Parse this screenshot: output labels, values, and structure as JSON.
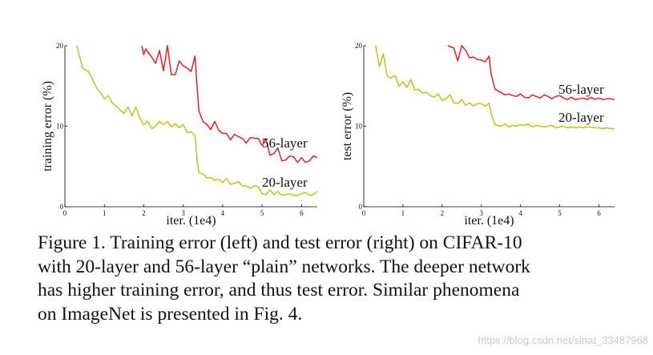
{
  "chart_data": [
    {
      "type": "line",
      "xlabel": "iter. (1e4)",
      "ylabel": "training error (%)",
      "xlim": [
        0,
        6.4
      ],
      "ylim": [
        0,
        20
      ],
      "xticks": [
        0,
        1,
        2,
        3,
        4,
        5,
        6
      ],
      "yticks": [
        0,
        10,
        20
      ],
      "series": [
        {
          "name": "56-layer",
          "color": "#ee1c25",
          "x": [
            1.95,
            2.0,
            2.05,
            2.1,
            2.2,
            2.3,
            2.4,
            2.5,
            2.6,
            2.7,
            2.8,
            2.9,
            3.0,
            3.1,
            3.2,
            3.3,
            3.35,
            3.4,
            3.5,
            3.6,
            3.7,
            3.8,
            3.9,
            4.0,
            4.1,
            4.2,
            4.3,
            4.4,
            4.5,
            4.6,
            4.7,
            4.8,
            4.9,
            5.0,
            5.1,
            5.2,
            5.3,
            5.4,
            5.5,
            5.6,
            5.7,
            5.8,
            5.9,
            6.0,
            6.1,
            6.2,
            6.3,
            6.4
          ],
          "y": [
            20.0,
            18.9,
            19.6,
            19.2,
            18.6,
            17.8,
            19.4,
            16.9,
            20.0,
            16.4,
            16.4,
            18.1,
            17.5,
            17.2,
            16.8,
            18.7,
            15.0,
            11.9,
            10.6,
            10.2,
            9.6,
            10.6,
            9.5,
            9.1,
            9.1,
            8.3,
            9.0,
            8.7,
            8.5,
            7.9,
            8.6,
            8.5,
            8.5,
            7.6,
            8.4,
            6.4,
            6.6,
            7.3,
            5.7,
            5.8,
            6.3,
            6.2,
            5.5,
            6.1,
            5.5,
            5.7,
            6.3,
            6.1
          ]
        },
        {
          "name": "20-layer",
          "color": "#bfc21a",
          "x": [
            0.3,
            0.45,
            0.6,
            0.7,
            0.8,
            0.9,
            1.0,
            1.1,
            1.2,
            1.3,
            1.4,
            1.5,
            1.6,
            1.7,
            1.8,
            1.9,
            2.0,
            2.1,
            2.2,
            2.3,
            2.4,
            2.5,
            2.6,
            2.7,
            2.8,
            2.9,
            3.0,
            3.1,
            3.2,
            3.3,
            3.35,
            3.4,
            3.5,
            3.6,
            3.7,
            3.8,
            3.9,
            4.0,
            4.1,
            4.2,
            4.3,
            4.4,
            4.5,
            4.6,
            4.7,
            4.8,
            4.9,
            5.0,
            5.1,
            5.2,
            5.3,
            5.4,
            5.5,
            5.6,
            5.7,
            5.8,
            5.9,
            6.0,
            6.1,
            6.2,
            6.3,
            6.4
          ],
          "y": [
            20.0,
            17.2,
            16.8,
            15.8,
            14.8,
            14.2,
            13.4,
            13.8,
            12.9,
            12.5,
            12.0,
            11.6,
            12.4,
            11.3,
            12.4,
            11.0,
            10.2,
            10.6,
            9.7,
            10.0,
            10.6,
            10.2,
            10.6,
            9.9,
            10.3,
            9.8,
            10.2,
            9.2,
            9.3,
            8.9,
            6.0,
            4.2,
            4.1,
            3.6,
            3.6,
            3.3,
            3.4,
            3.0,
            3.5,
            2.8,
            2.9,
            3.1,
            2.6,
            2.6,
            2.3,
            2.6,
            2.5,
            1.6,
            1.5,
            2.1,
            1.5,
            1.9,
            1.4,
            1.5,
            1.6,
            1.4,
            1.4,
            1.6,
            1.8,
            1.4,
            1.5,
            1.9
          ]
        }
      ]
    },
    {
      "type": "line",
      "xlabel": "iter. (1e4)",
      "ylabel": "test error (%)",
      "xlim": [
        0,
        6.4
      ],
      "ylim": [
        0,
        20
      ],
      "xticks": [
        0,
        1,
        2,
        3,
        4,
        5,
        6
      ],
      "yticks": [
        0,
        10,
        20
      ],
      "series": [
        {
          "name": "56-layer",
          "color": "#ee1c25",
          "x": [
            2.15,
            2.3,
            2.4,
            2.5,
            2.6,
            2.7,
            2.8,
            2.9,
            3.0,
            3.1,
            3.2,
            3.25,
            3.35,
            3.5,
            3.6,
            3.7,
            3.8,
            3.9,
            4.0,
            4.1,
            4.2,
            4.3,
            4.4,
            4.5,
            4.6,
            4.7,
            4.8,
            4.9,
            5.0,
            5.1,
            5.2,
            5.3,
            5.4,
            5.5,
            5.6,
            5.7,
            5.8,
            5.9,
            6.0,
            6.1,
            6.2,
            6.3,
            6.4
          ],
          "y": [
            20.0,
            19.7,
            18.1,
            20.0,
            19.4,
            18.5,
            18.6,
            18.3,
            18.2,
            18.0,
            18.7,
            16.5,
            14.6,
            14.2,
            13.9,
            14.0,
            13.8,
            13.7,
            14.0,
            13.6,
            13.5,
            13.9,
            13.7,
            13.5,
            13.9,
            13.7,
            13.4,
            13.7,
            13.8,
            13.5,
            13.3,
            13.6,
            13.3,
            13.4,
            13.5,
            13.3,
            13.6,
            13.3,
            13.5,
            13.3,
            13.4,
            13.4,
            13.3
          ]
        },
        {
          "name": "20-layer",
          "color": "#bfc21a",
          "x": [
            0.3,
            0.4,
            0.5,
            0.6,
            0.7,
            0.8,
            0.9,
            1.0,
            1.1,
            1.2,
            1.3,
            1.4,
            1.5,
            1.6,
            1.7,
            1.8,
            1.9,
            2.0,
            2.1,
            2.2,
            2.3,
            2.4,
            2.5,
            2.6,
            2.7,
            2.8,
            2.9,
            3.0,
            3.1,
            3.2,
            3.25,
            3.35,
            3.5,
            3.6,
            3.7,
            3.8,
            3.9,
            4.0,
            4.1,
            4.2,
            4.3,
            4.4,
            4.5,
            4.6,
            4.7,
            4.8,
            4.9,
            5.0,
            5.1,
            5.2,
            5.3,
            5.4,
            5.5,
            5.6,
            5.7,
            5.8,
            5.9,
            6.0,
            6.1,
            6.2,
            6.3,
            6.4
          ],
          "y": [
            20.0,
            17.4,
            19.0,
            16.2,
            16.0,
            16.3,
            15.0,
            15.5,
            14.8,
            15.8,
            14.5,
            14.6,
            14.1,
            14.2,
            13.8,
            13.6,
            14.0,
            13.2,
            13.4,
            13.9,
            12.9,
            12.8,
            13.3,
            12.6,
            12.9,
            12.5,
            12.8,
            12.8,
            12.5,
            12.9,
            11.6,
            10.2,
            10.0,
            10.3,
            9.9,
            10.1,
            10.0,
            10.2,
            10.1,
            10.3,
            9.9,
            10.1,
            10.0,
            9.9,
            10.0,
            10.1,
            9.8,
            9.9,
            10.0,
            9.8,
            9.9,
            9.8,
            9.9,
            9.8,
            9.9,
            9.9,
            9.8,
            9.8,
            9.7,
            9.8,
            9.7,
            9.7
          ]
        }
      ]
    }
  ],
  "caption": {
    "lines": [
      "Figure 1. Training error (left) and test error (right) on CIFAR-10",
      "with 20-layer and 56-layer “plain” networks. The deeper network",
      "has higher training error, and thus test error.  Similar phenomena",
      "on ImageNet is presented in Fig. 4."
    ]
  },
  "watermark": "https://blog.csdn.net/sinat_33487968"
}
